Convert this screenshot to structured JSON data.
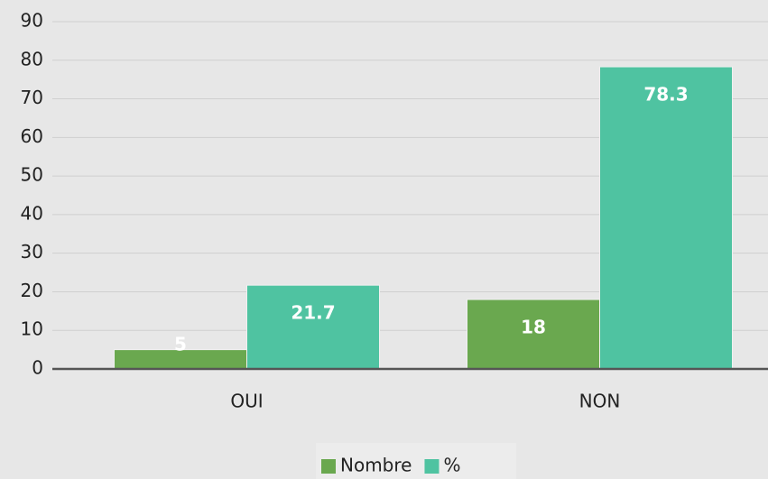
{
  "chart_data": {
    "type": "bar",
    "categories": [
      "OUI",
      "NON"
    ],
    "series": [
      {
        "name": "Nombre",
        "color": "#6aa84f",
        "values": [
          5,
          18
        ]
      },
      {
        "name": "%",
        "color": "#4fc3a1",
        "values": [
          21.7,
          78.3
        ]
      }
    ],
    "ylim": [
      0,
      90
    ],
    "yticks": [
      0,
      10,
      20,
      30,
      40,
      50,
      60,
      70,
      80,
      90
    ],
    "grid": true,
    "legend": "bottom"
  }
}
